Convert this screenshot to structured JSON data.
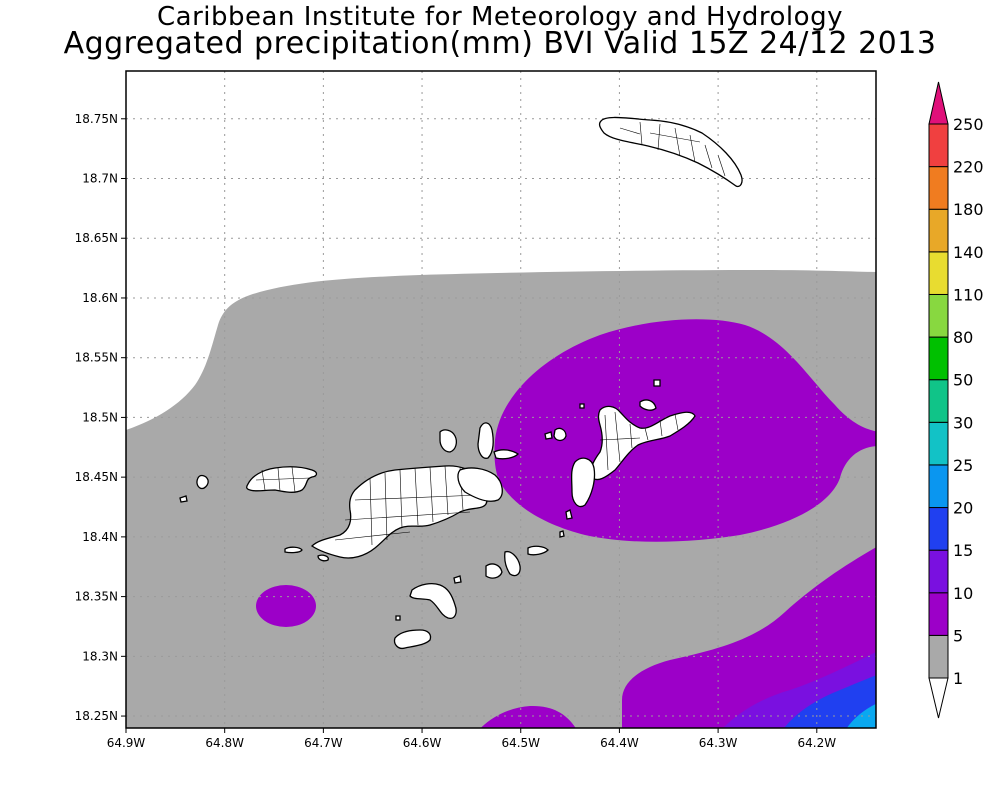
{
  "title_line1": "Caribbean Institute for Meteorology and Hydrology",
  "title_line2": "Aggregated precipitation(mm) BVI Valid 15Z 24/12 2013",
  "map": {
    "lon_range": [
      -64.9,
      -64.14
    ],
    "lat_range": [
      18.24,
      18.79
    ],
    "lon_ticks": [
      {
        "value": -64.9,
        "label": "64.9W"
      },
      {
        "value": -64.8,
        "label": "64.8W"
      },
      {
        "value": -64.7,
        "label": "64.7W"
      },
      {
        "value": -64.6,
        "label": "64.6W"
      },
      {
        "value": -64.5,
        "label": "64.5W"
      },
      {
        "value": -64.4,
        "label": "64.4W"
      },
      {
        "value": -64.3,
        "label": "64.3W"
      },
      {
        "value": -64.2,
        "label": "64.2W"
      }
    ],
    "lat_ticks": [
      {
        "value": 18.75,
        "label": "18.75N"
      },
      {
        "value": 18.7,
        "label": "18.7N"
      },
      {
        "value": 18.65,
        "label": "18.65N"
      },
      {
        "value": 18.6,
        "label": "18.6N"
      },
      {
        "value": 18.55,
        "label": "18.55N"
      },
      {
        "value": 18.5,
        "label": "18.5N"
      },
      {
        "value": 18.45,
        "label": "18.45N"
      },
      {
        "value": 18.4,
        "label": "18.4N"
      },
      {
        "value": 18.35,
        "label": "18.35N"
      },
      {
        "value": 18.3,
        "label": "18.3N"
      },
      {
        "value": 18.25,
        "label": "18.25N"
      }
    ],
    "grid": true,
    "colorbar": [
      {
        "label": "1",
        "color": "#ffffff"
      },
      {
        "label": "5",
        "color": "#a9a9a9"
      },
      {
        "label": "10",
        "color": "#9c00c8"
      },
      {
        "label": "15",
        "color": "#7a10e0"
      },
      {
        "label": "20",
        "color": "#2040f0"
      },
      {
        "label": "25",
        "color": "#0a96f0"
      },
      {
        "label": "30",
        "color": "#12c2c6"
      },
      {
        "label": "50",
        "color": "#10c488"
      },
      {
        "label": "80",
        "color": "#00c000"
      },
      {
        "label": "110",
        "color": "#88d840"
      },
      {
        "label": "140",
        "color": "#e8dc30"
      },
      {
        "label": "180",
        "color": "#e8a828"
      },
      {
        "label": "220",
        "color": "#f07c20"
      },
      {
        "label": "250",
        "color": "#f04040"
      }
    ],
    "colorbar_top_color": "#e0107a",
    "colors": {
      "grey": "#a9a9a9",
      "purple": "#9c00c8",
      "violet": "#7a10e0",
      "blue": "#2040f0",
      "lightblue": "#0aa8f0",
      "land_fill": "#ffffff",
      "land_edge": "#000000"
    }
  }
}
